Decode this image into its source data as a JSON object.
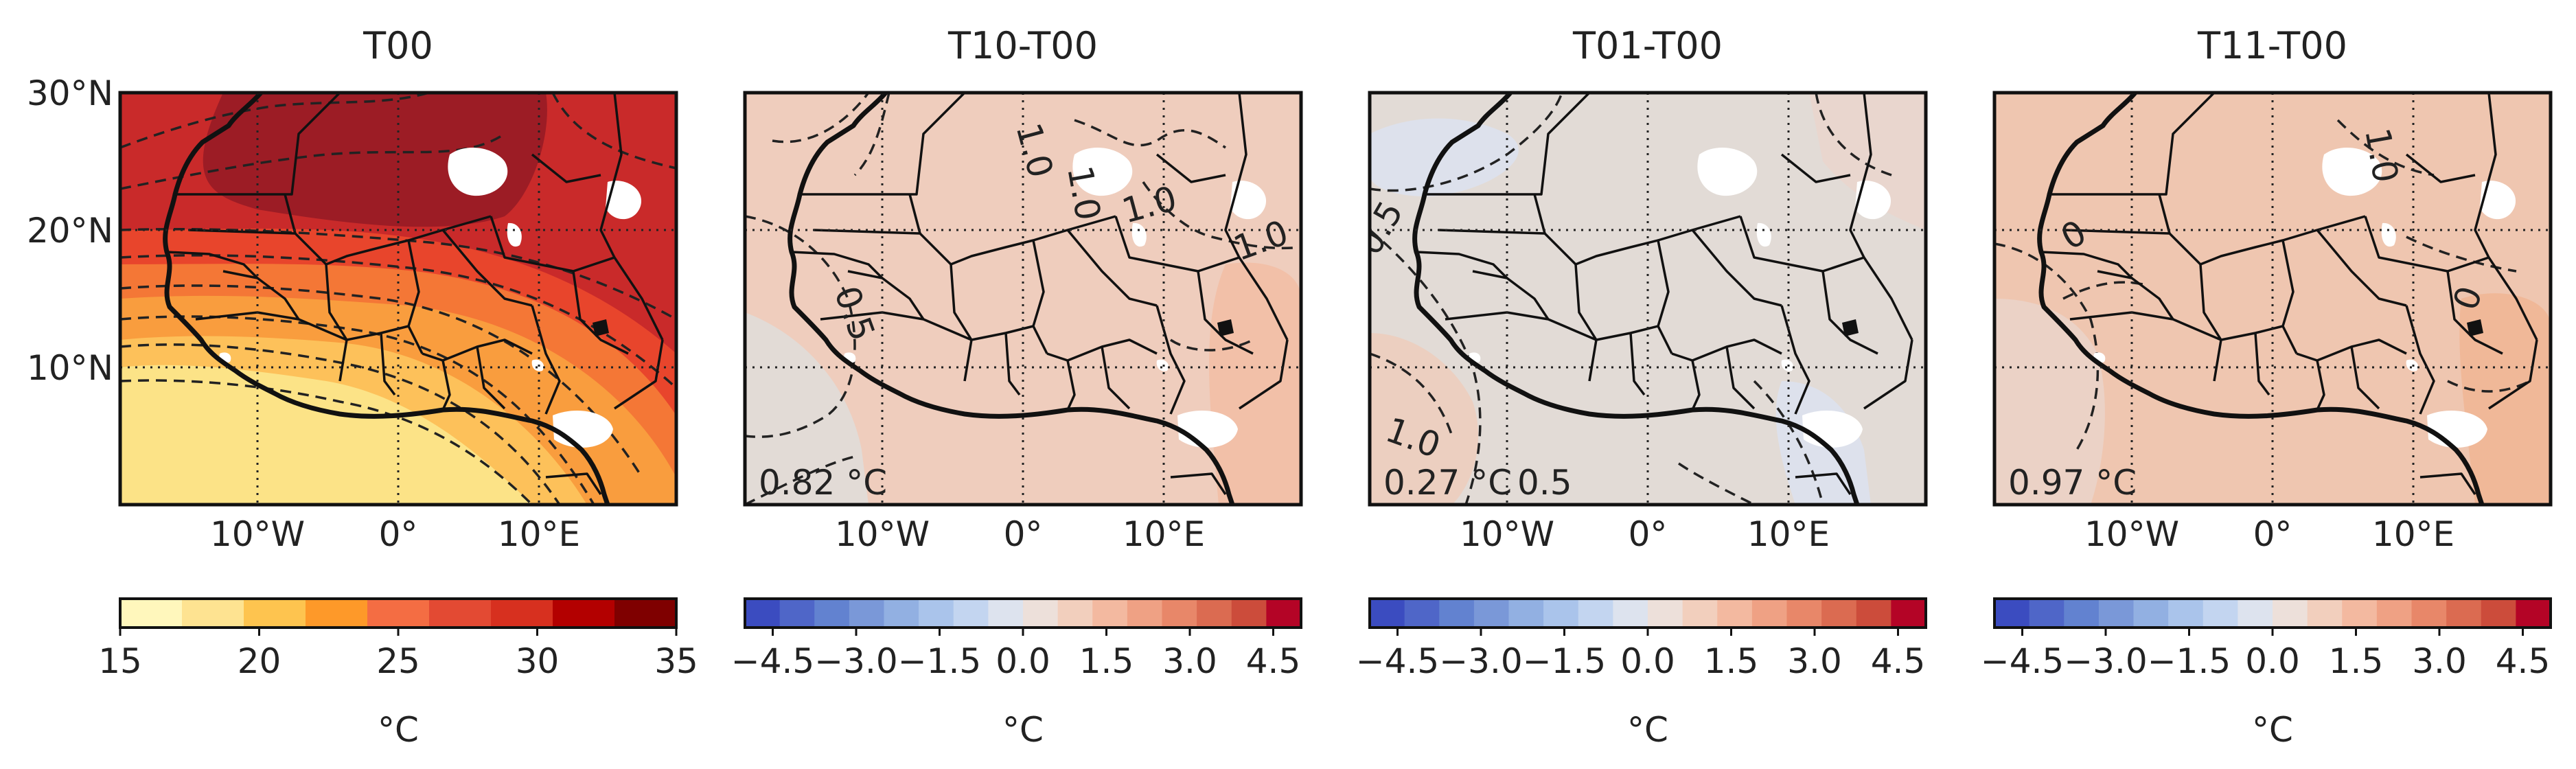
{
  "panels": [
    {
      "title": "T00",
      "annotation": "",
      "ylabels": [
        "30°N",
        "20°N",
        "10°N"
      ],
      "xlabels": [
        "10°W",
        "0°",
        "10°E"
      ],
      "colorbar": {
        "type": "sequential",
        "ticks": [
          "15",
          "20",
          "25",
          "30",
          "35"
        ],
        "label": "°C",
        "colors": [
          "#fff7bc",
          "#fee391",
          "#fec44f",
          "#fe9929",
          "#f46d43",
          "#e34a33",
          "#d7301f",
          "#b30000",
          "#7f0000"
        ]
      },
      "contour_labels": []
    },
    {
      "title": "T10-T00",
      "annotation": "0.82 °C",
      "ylabels": [],
      "xlabels": [
        "10°W",
        "0°",
        "10°E"
      ],
      "colorbar": {
        "type": "diverging",
        "ticks": [
          "−4.5",
          "−3.0",
          "−1.5",
          "0.0",
          "1.5",
          "3.0",
          "4.5"
        ],
        "label": "°C",
        "colors": [
          "#3b4cc0",
          "#4f66c8",
          "#6282d0",
          "#7a98d8",
          "#92b0e2",
          "#aac4eb",
          "#c3d5f0",
          "#dde3ee",
          "#ede0da",
          "#f2cfbd",
          "#f3b9a0",
          "#efa184",
          "#e88769",
          "#db6b51",
          "#cc4c3b",
          "#b40426"
        ]
      },
      "contour_labels": [
        "1.0",
        "1.0",
        "1.0",
        "1.0",
        "0.5"
      ]
    },
    {
      "title": "T01-T00",
      "annotation": "0.27 °C",
      "ylabels": [],
      "xlabels": [
        "10°W",
        "0°",
        "10°E"
      ],
      "colorbar": {
        "type": "diverging",
        "ticks": [
          "−4.5",
          "−3.0",
          "−1.5",
          "0.0",
          "1.5",
          "3.0",
          "4.5"
        ],
        "label": "°C",
        "colors": [
          "#3b4cc0",
          "#4f66c8",
          "#6282d0",
          "#7a98d8",
          "#92b0e2",
          "#aac4eb",
          "#c3d5f0",
          "#dde3ee",
          "#ede0da",
          "#f2cfbd",
          "#f3b9a0",
          "#efa184",
          "#e88769",
          "#db6b51",
          "#cc4c3b",
          "#b40426"
        ]
      },
      "contour_labels": [
        "0.5",
        "1.0",
        "0.5"
      ]
    },
    {
      "title": "T11-T00",
      "annotation": "0.97 °C",
      "ylabels": [],
      "xlabels": [
        "10°W",
        "0°",
        "10°E"
      ],
      "colorbar": {
        "type": "diverging",
        "ticks": [
          "−4.5",
          "−3.0",
          "−1.5",
          "0.0",
          "1.5",
          "3.0",
          "4.5"
        ],
        "label": "°C",
        "colors": [
          "#3b4cc0",
          "#4f66c8",
          "#6282d0",
          "#7a98d8",
          "#92b0e2",
          "#aac4eb",
          "#c3d5f0",
          "#dde3ee",
          "#ede0da",
          "#f2cfbd",
          "#f3b9a0",
          "#efa184",
          "#e88769",
          "#db6b51",
          "#cc4c3b",
          "#b40426"
        ]
      },
      "contour_labels": [
        "0",
        "1.0",
        "0"
      ]
    }
  ],
  "map_colors": {
    "t00_bands": [
      "#fce387",
      "#fdc15a",
      "#f99d3e",
      "#f47736",
      "#e8452c",
      "#c92a2a",
      "#9c1c25"
    ],
    "diff_fill": [
      "#efcdbd",
      "#e2dbd6",
      "#efc6b0"
    ],
    "missing": "#ffffff",
    "boundary": "#111111"
  }
}
